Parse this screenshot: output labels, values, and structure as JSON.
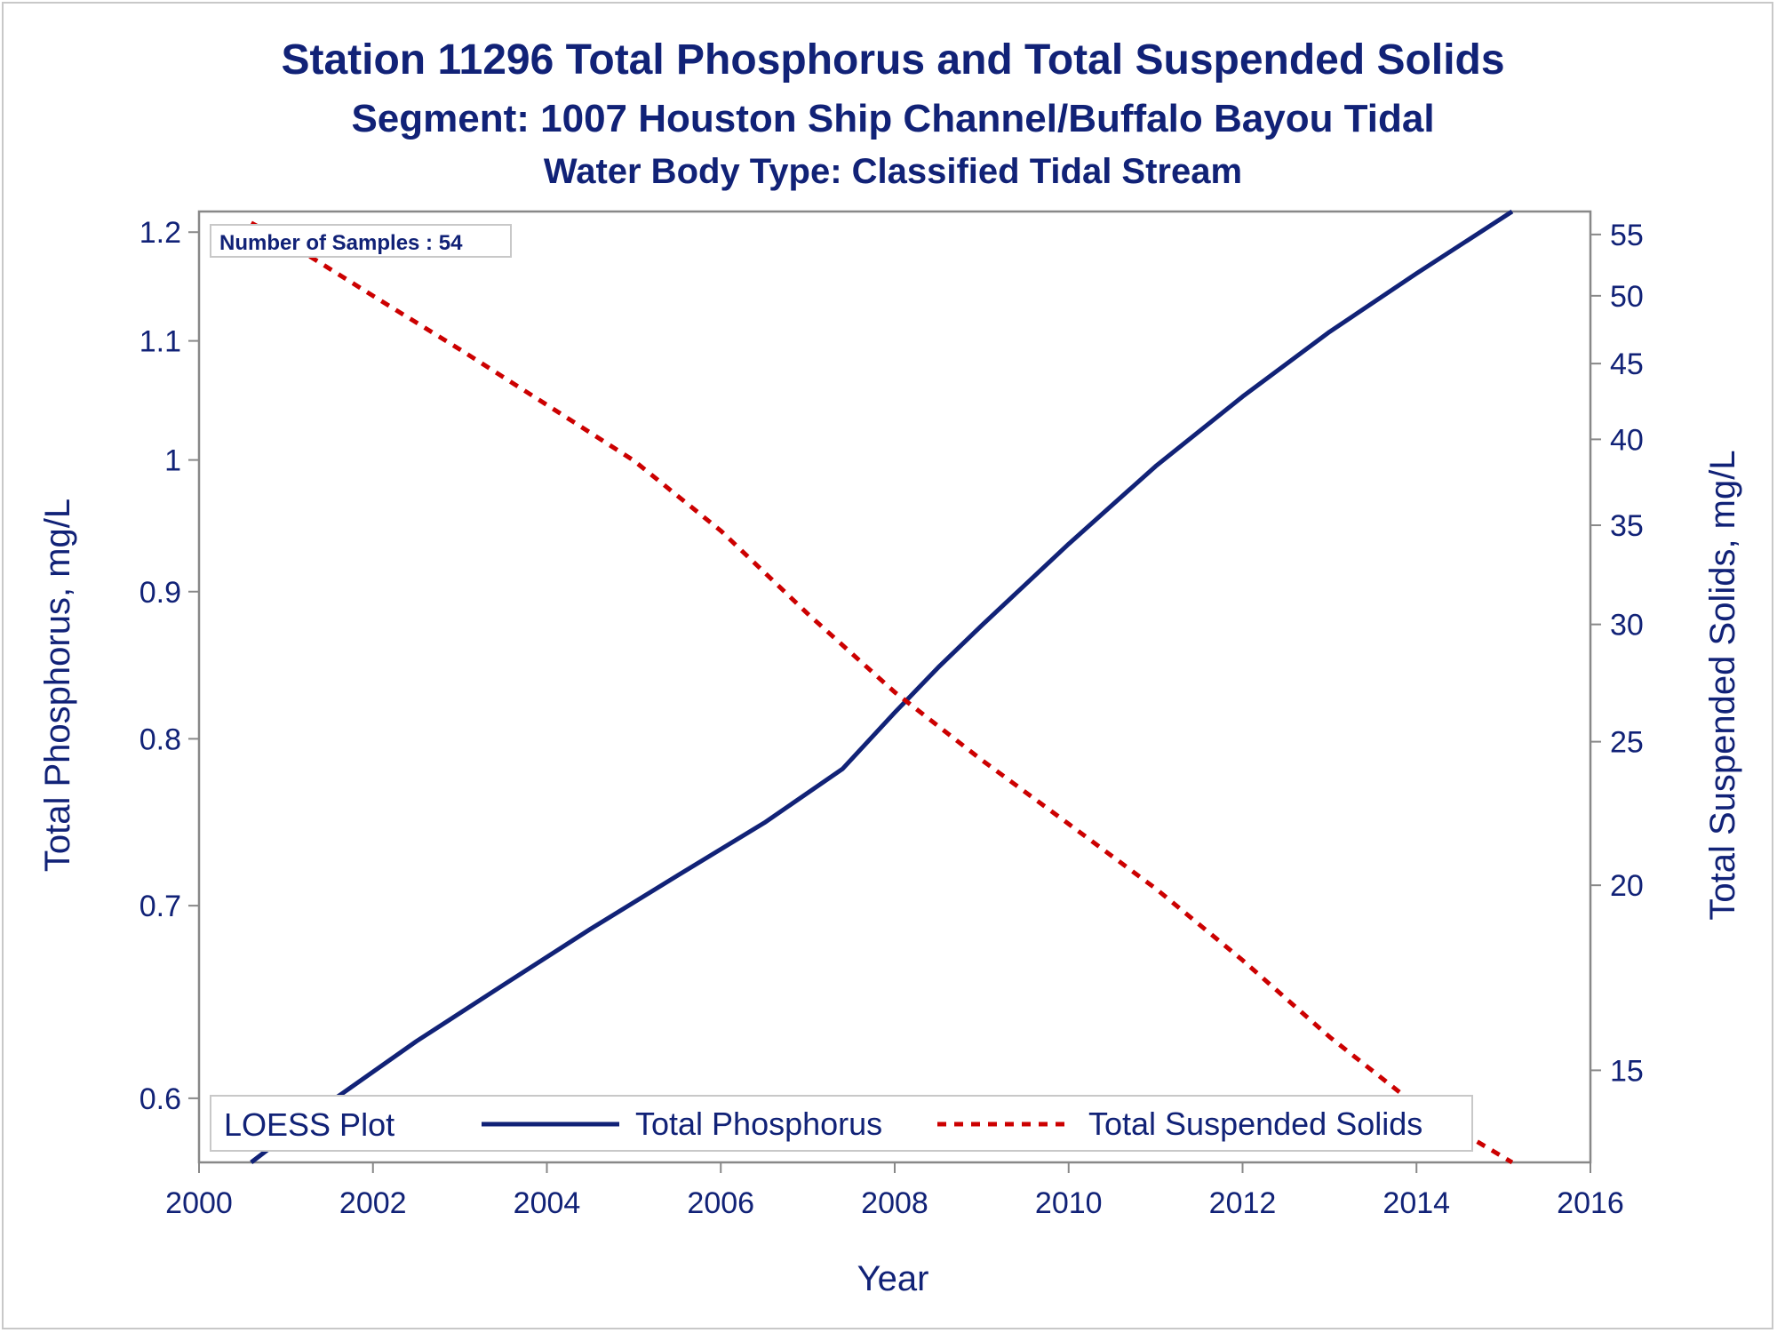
{
  "chart_data": {
    "type": "line",
    "title": "Station 11296  Total Phosphorus and Total Suspended Solids",
    "subtitle": "Segment: 1007  Houston Ship Channel/Buffalo Bayou Tidal",
    "subtitle2": "Water Body Type: Classified Tidal Stream",
    "xlabel": "Year",
    "ylabel": "Total Phosphorus, mg/L",
    "y2label": "Total Suspended Solids, mg/L",
    "xlim": [
      2000,
      2016
    ],
    "ylim": [
      0.57,
      1.22
    ],
    "y2lim": [
      13.0,
      57.0
    ],
    "yscale": "log",
    "y2scale": "log",
    "x_ticks": [
      "2000",
      "2002",
      "2004",
      "2006",
      "2008",
      "2010",
      "2012",
      "2014",
      "2016"
    ],
    "y_ticks": [
      "0.6",
      "0.7",
      "0.8",
      "0.9",
      "1",
      "1.1",
      "1.2"
    ],
    "y2_ticks": [
      "15",
      "20",
      "25",
      "30",
      "35",
      "40",
      "45",
      "50",
      "55"
    ],
    "annotation": "Number of Samples : 54",
    "legend": {
      "title": "LOESS Plot",
      "placement": "bottom-inside",
      "entries": [
        "Total Phosphorus",
        "Total Suspended Solids"
      ]
    },
    "colors": {
      "phosphorus": "#112277",
      "tss": "#cc0000",
      "text": "#112277"
    },
    "series": [
      {
        "name": "Total Phosphorus",
        "axis": "left",
        "style": "solid",
        "x": [
          2000.6,
          2001.5,
          2002.5,
          2003.5,
          2004.5,
          2005.5,
          2006.5,
          2007.4,
          2008.0,
          2008.5,
          2009.0,
          2010.0,
          2011.0,
          2012.0,
          2013.0,
          2014.0,
          2015.1
        ],
        "values": [
          0.57,
          0.598,
          0.628,
          0.657,
          0.687,
          0.717,
          0.748,
          0.781,
          0.817,
          0.847,
          0.876,
          0.935,
          0.995,
          1.052,
          1.108,
          1.161,
          1.22
        ]
      },
      {
        "name": "Total Suspended Solids",
        "axis": "right",
        "style": "dashed",
        "x": [
          2000.6,
          2001.0,
          2002.0,
          2003.0,
          2004.0,
          2005.0,
          2006.0,
          2007.0,
          2008.0,
          2009.0,
          2010.0,
          2011.0,
          2012.0,
          2013.0,
          2014.0,
          2015.1
        ],
        "values": [
          56.0,
          54.4,
          50.0,
          46.0,
          42.2,
          38.7,
          34.7,
          30.5,
          27.0,
          24.3,
          22.0,
          19.9,
          17.8,
          15.8,
          14.2,
          13.0
        ]
      }
    ]
  }
}
